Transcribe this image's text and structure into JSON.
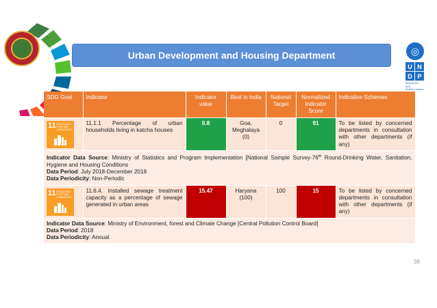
{
  "header": {
    "title": "Urban Development and Housing Department"
  },
  "undp": {
    "letters": [
      "U",
      "N",
      "D",
      "P"
    ],
    "tagline_1": "Empowered lives.",
    "tagline_2": "Resilient nations."
  },
  "table": {
    "headers": {
      "sdg_goal": "SDG Goal",
      "indicator": "Indicator",
      "indicator_value": "Indicator value",
      "best_in_india": "Best in India",
      "national_target": "National Target",
      "normalized_score": "Normalized Indicator Score",
      "indicative_schemes": "Indicative Schemes"
    },
    "rows": [
      {
        "sdg_number": "11",
        "sdg_label": "SUSTAINABLE CITIES AND COMMUNITIES",
        "indicator": "11.1.1 Percentage of urban households living in katcha houses",
        "value": "0.8",
        "value_color": "#1fa149",
        "best_in_india": "Goa, Meghalaya (0)",
        "national_target": "0",
        "normalized_score": "91",
        "score_color": "#1fa149",
        "schemes": "To be listed by concerned departments in consultation with other departments (if any)",
        "source_label": "Indicator Data Source",
        "source_text": ": Ministry of Statistics and Program Implementation [National Sample Survey-76",
        "source_sup": "th",
        "source_text_2": " Round-Drinking Water, Sanitation, Hygiene and Housing Conditions",
        "period_label": "Data Period",
        "period_value": ": July 2018-December 2018",
        "periodicity_label": "Data Periodicity",
        "periodicity_value": ": Non-Periodic"
      },
      {
        "sdg_number": "11",
        "sdg_label": "SUSTAINABLE CITIES AND COMMUNITIES",
        "indicator": "11.6.4. Installed sewage treatment capacity as a percentage of sewage generated in urban areas",
        "value": "15.47",
        "value_color": "#c00000",
        "best_in_india": "Haryana (100)",
        "national_target": "100",
        "normalized_score": "15",
        "score_color": "#c00000",
        "schemes": "To be listed by concerned departments in consultation with other departments (if any)",
        "source_label": "Indicator Data Source",
        "source_text": ": Ministry of Environment, forest and Climate Change [Central Pollution Control Board]",
        "period_label": "Data Period",
        "period_value": ": 2018",
        "periodicity_label": "Data Periodicity",
        "periodicity_value": ": Annual"
      }
    ]
  },
  "footer": {
    "page_number": "38"
  },
  "colors": {
    "header_orange": "#ed7d31",
    "row_peach": "#fbe5d6",
    "title_blue": "#5b8fd6",
    "good_green": "#1fa149",
    "bad_red": "#c00000"
  },
  "icons": [
    "sdg-wheel-icon",
    "state-emblem-icon",
    "un-emblem-icon",
    "sdg-11-icon"
  ]
}
